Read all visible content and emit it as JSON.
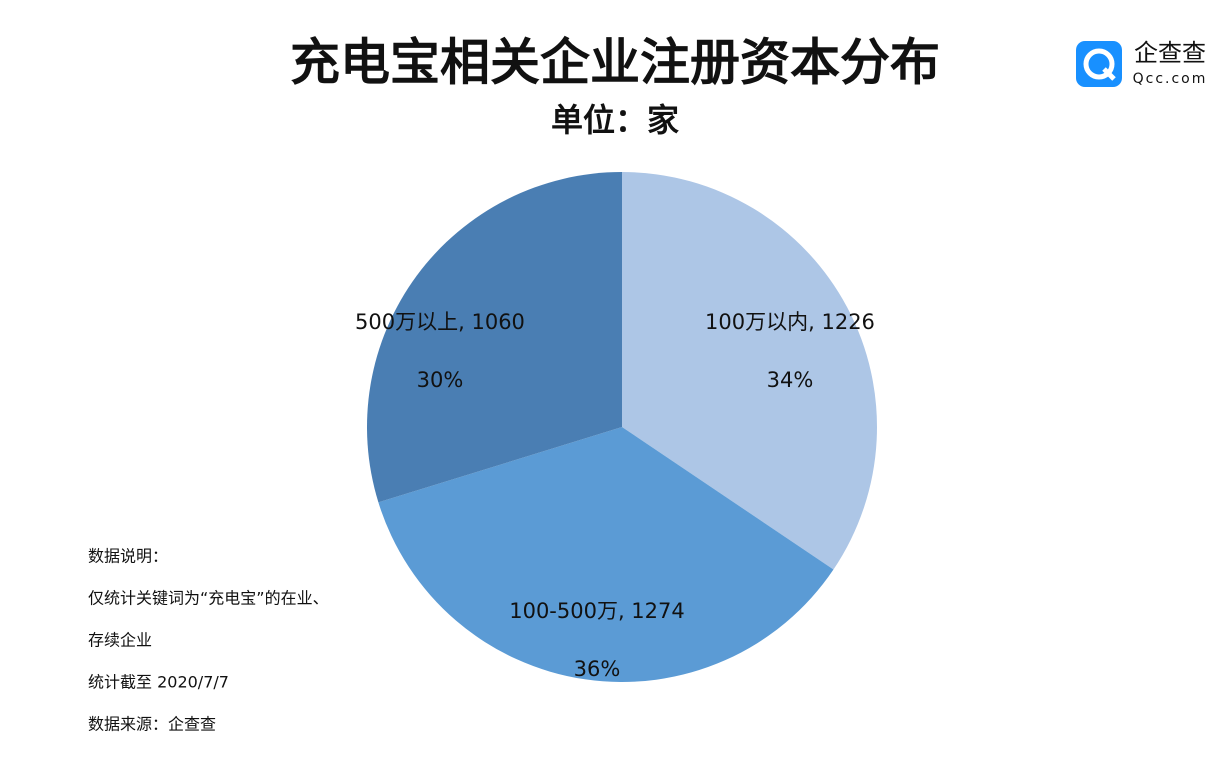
{
  "chart_data": {
    "type": "pie",
    "title": "充电宝相关企业注册资本分布",
    "subtitle": "单位：家",
    "labels": [
      "100万以内, 1226",
      "100-500万, 1274",
      "500万以上, 1060"
    ],
    "values": [
      1226,
      1274,
      1060
    ],
    "percentages": [
      34,
      36,
      30
    ],
    "percentage_labels": [
      "34%",
      "36%",
      "30%"
    ],
    "colors": [
      "#adc6e6",
      "#5b9bd5",
      "#4a7eb3"
    ]
  },
  "notes": [
    "数据说明：",
    "仅统计关键词为“充电宝”的在业、",
    "存续企业",
    "统计截至 2020/7/7",
    "数据来源：企查查"
  ],
  "logo": {
    "name": "企查查",
    "url": "Qcc.com"
  }
}
